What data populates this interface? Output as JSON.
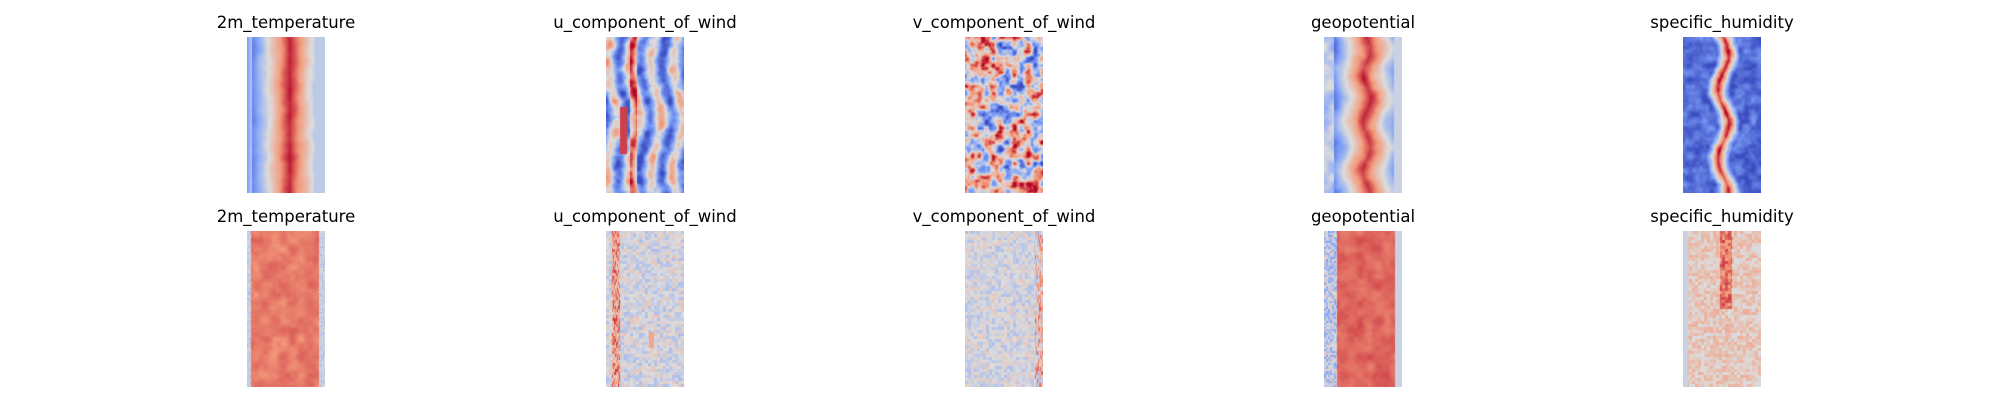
{
  "colors": {
    "background": "#ffffff",
    "colormap": "coolwarm",
    "colormap_low": "#3b4cc0",
    "colormap_mid": "#dddddd",
    "colormap_high": "#b40426"
  },
  "chart_data": [
    {
      "type": "heatmap",
      "title": "2m_temperature",
      "row": 0,
      "col": 0,
      "colormap": "coolwarm",
      "pattern": "warm_band",
      "axes": "off"
    },
    {
      "type": "heatmap",
      "title": "u_component_of_wind",
      "row": 0,
      "col": 1,
      "colormap": "coolwarm",
      "pattern": "wind_streaks",
      "axes": "off"
    },
    {
      "type": "heatmap",
      "title": "v_component_of_wind",
      "row": 0,
      "col": 2,
      "colormap": "coolwarm",
      "pattern": "eddies",
      "axes": "off"
    },
    {
      "type": "heatmap",
      "title": "geopotential",
      "row": 0,
      "col": 3,
      "colormap": "coolwarm",
      "pattern": "warm_band_wavy",
      "axes": "off"
    },
    {
      "type": "heatmap",
      "title": "specific_humidity",
      "row": 0,
      "col": 4,
      "colormap": "coolwarm",
      "pattern": "cold_with_warm_core",
      "axes": "off"
    },
    {
      "type": "heatmap",
      "title": "2m_temperature",
      "row": 1,
      "col": 0,
      "colormap": "coolwarm",
      "pattern": "warm_uniform",
      "axes": "off"
    },
    {
      "type": "heatmap",
      "title": "u_component_of_wind",
      "row": 1,
      "col": 1,
      "colormap": "coolwarm",
      "pattern": "neutral_noise_stripe",
      "axes": "off"
    },
    {
      "type": "heatmap",
      "title": "v_component_of_wind",
      "row": 1,
      "col": 2,
      "colormap": "coolwarm",
      "pattern": "neutral_noise",
      "axes": "off"
    },
    {
      "type": "heatmap",
      "title": "geopotential",
      "row": 1,
      "col": 3,
      "colormap": "coolwarm",
      "pattern": "warm_uniform_blue_edge",
      "axes": "off"
    },
    {
      "type": "heatmap",
      "title": "specific_humidity",
      "row": 1,
      "col": 4,
      "colormap": "coolwarm",
      "pattern": "light_warm_noise",
      "axes": "off"
    }
  ]
}
